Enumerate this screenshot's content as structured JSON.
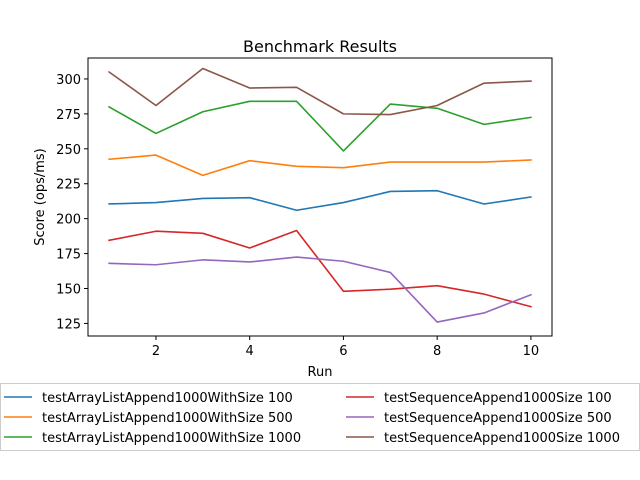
{
  "chart_data": {
    "type": "line",
    "title": "Benchmark Results",
    "xlabel": "Run",
    "ylabel": "Score (ops/ms)",
    "x": [
      1,
      2,
      3,
      4,
      5,
      6,
      7,
      8,
      9,
      10
    ],
    "xticks": [
      2,
      4,
      6,
      8,
      10
    ],
    "yticks": [
      125,
      150,
      175,
      200,
      225,
      250,
      275,
      300
    ],
    "xlim": [
      0.55,
      10.45
    ],
    "ylim": [
      116,
      315
    ],
    "grid": false,
    "legend_position": "below",
    "legend_columns": 2,
    "series": [
      {
        "name": "testArrayListAppend1000WithSize 100",
        "color": "#1f77b4",
        "values": [
          210.5,
          211.5,
          214.5,
          215,
          206,
          211.5,
          219.5,
          220,
          210.5,
          215.5
        ]
      },
      {
        "name": "testArrayListAppend1000WithSize 500",
        "color": "#ff7f0e",
        "values": [
          242.5,
          245.5,
          231,
          241.5,
          237.5,
          236.5,
          240.5,
          240.5,
          240.5,
          242
        ]
      },
      {
        "name": "testArrayListAppend1000WithSize 1000",
        "color": "#2ca02c",
        "values": [
          280,
          261,
          276.5,
          284,
          284,
          248.5,
          282,
          279,
          267.5,
          272.5
        ]
      },
      {
        "name": "testSequenceAppend1000Size 100",
        "color": "#d62728",
        "values": [
          184.5,
          191,
          189.5,
          179,
          191.5,
          148,
          149.5,
          152,
          146,
          137
        ]
      },
      {
        "name": "testSequenceAppend1000Size 500",
        "color": "#9467bd",
        "values": [
          168,
          167,
          170.5,
          169,
          172.5,
          169.5,
          161.5,
          126,
          132.5,
          145.5
        ]
      },
      {
        "name": "testSequenceAppend1000Size 1000",
        "color": "#8c564b",
        "values": [
          305,
          281,
          307.5,
          293.5,
          294,
          275,
          274.5,
          281,
          297,
          298.5
        ]
      }
    ]
  }
}
